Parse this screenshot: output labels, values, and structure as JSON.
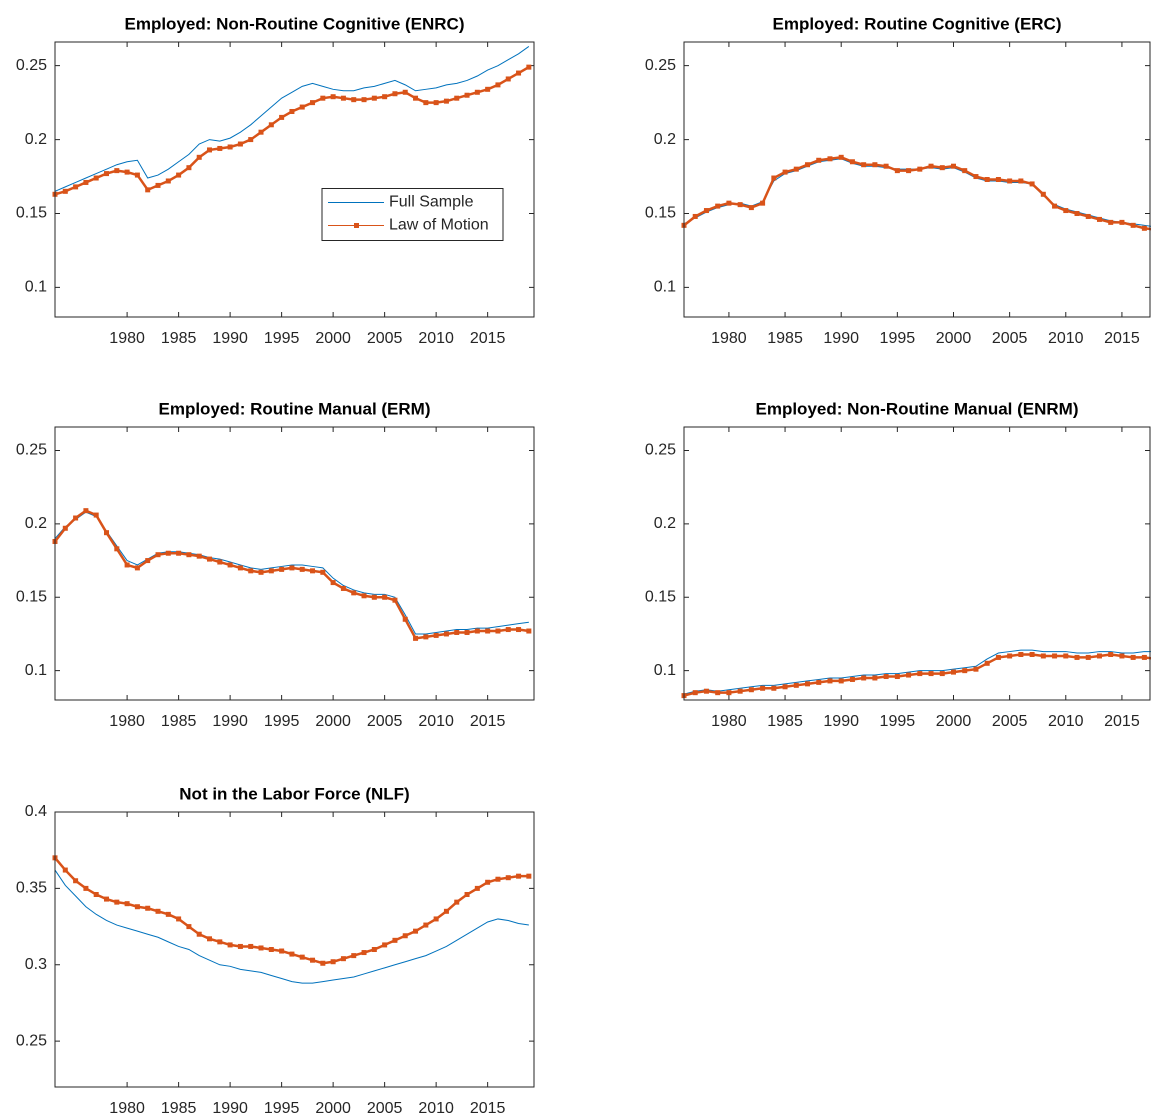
{
  "chart_data": [
    {
      "type": "line",
      "title": "Employed: Non-Routine Cognitive (ENRC)",
      "x": [
        1973,
        1974,
        1975,
        1976,
        1977,
        1978,
        1979,
        1980,
        1981,
        1982,
        1983,
        1984,
        1985,
        1986,
        1987,
        1988,
        1989,
        1990,
        1991,
        1992,
        1993,
        1994,
        1995,
        1996,
        1997,
        1998,
        1999,
        2000,
        2001,
        2002,
        2003,
        2004,
        2005,
        2006,
        2007,
        2008,
        2009,
        2010,
        2011,
        2012,
        2013,
        2014,
        2015,
        2016,
        2017,
        2018,
        2019
      ],
      "series": [
        {
          "name": "Full Sample",
          "color": "#0072bd",
          "values": [
            0.165,
            0.168,
            0.171,
            0.174,
            0.177,
            0.18,
            0.183,
            0.185,
            0.186,
            0.174,
            0.176,
            0.18,
            0.185,
            0.19,
            0.197,
            0.2,
            0.199,
            0.201,
            0.205,
            0.21,
            0.216,
            0.222,
            0.228,
            0.232,
            0.236,
            0.238,
            0.236,
            0.234,
            0.233,
            0.233,
            0.235,
            0.236,
            0.238,
            0.24,
            0.237,
            0.233,
            0.234,
            0.235,
            0.237,
            0.238,
            0.24,
            0.243,
            0.247,
            0.25,
            0.254,
            0.258,
            0.263
          ]
        },
        {
          "name": "Law of Motion",
          "color": "#d95319",
          "values": [
            0.163,
            0.165,
            0.168,
            0.171,
            0.174,
            0.177,
            0.179,
            0.178,
            0.176,
            0.166,
            0.169,
            0.172,
            0.176,
            0.181,
            0.188,
            0.193,
            0.194,
            0.195,
            0.197,
            0.2,
            0.205,
            0.21,
            0.215,
            0.219,
            0.222,
            0.225,
            0.228,
            0.229,
            0.228,
            0.227,
            0.227,
            0.228,
            0.229,
            0.231,
            0.232,
            0.228,
            0.225,
            0.225,
            0.226,
            0.228,
            0.23,
            0.232,
            0.234,
            0.237,
            0.241,
            0.245,
            0.249
          ]
        }
      ],
      "xlim": [
        1973,
        2019.5
      ],
      "xticks": [
        1980,
        1985,
        1990,
        1995,
        2000,
        2005,
        2010,
        2015
      ],
      "ylim": [
        0.08,
        0.266
      ],
      "yticks": [
        0.1,
        0.15,
        0.2,
        0.25
      ],
      "legend": "center-right"
    },
    {
      "type": "line",
      "title": "Employed: Routine Cognitive (ERC)",
      "x": [
        1976,
        1977,
        1978,
        1979,
        1980,
        1981,
        1982,
        1983,
        1984,
        1985,
        1986,
        1987,
        1988,
        1989,
        1990,
        1991,
        1992,
        1993,
        1994,
        1995,
        1996,
        1997,
        1998,
        1999,
        2000,
        2001,
        2002,
        2003,
        2004,
        2005,
        2006,
        2007,
        2008,
        2009,
        2010,
        2011,
        2012,
        2013,
        2014,
        2015,
        2016,
        2017,
        2018
      ],
      "series": [
        {
          "name": "Full Sample",
          "color": "#0072bd",
          "values": [
            0.143,
            0.147,
            0.151,
            0.154,
            0.156,
            0.157,
            0.155,
            0.158,
            0.172,
            0.177,
            0.179,
            0.182,
            0.185,
            0.186,
            0.187,
            0.184,
            0.182,
            0.182,
            0.181,
            0.18,
            0.18,
            0.18,
            0.181,
            0.18,
            0.181,
            0.178,
            0.174,
            0.172,
            0.172,
            0.171,
            0.171,
            0.17,
            0.162,
            0.156,
            0.153,
            0.151,
            0.149,
            0.147,
            0.145,
            0.144,
            0.143,
            0.142,
            0.141
          ]
        },
        {
          "name": "Law of Motion",
          "color": "#d95319",
          "values": [
            0.142,
            0.148,
            0.152,
            0.155,
            0.157,
            0.156,
            0.154,
            0.157,
            0.174,
            0.178,
            0.18,
            0.183,
            0.186,
            0.187,
            0.188,
            0.185,
            0.183,
            0.183,
            0.182,
            0.179,
            0.179,
            0.18,
            0.182,
            0.181,
            0.182,
            0.179,
            0.175,
            0.173,
            0.173,
            0.172,
            0.172,
            0.17,
            0.163,
            0.155,
            0.152,
            0.15,
            0.148,
            0.146,
            0.144,
            0.144,
            0.142,
            0.14,
            0.139
          ]
        }
      ],
      "xlim": [
        1976,
        2017.5
      ],
      "xticks": [
        1980,
        1985,
        1990,
        1995,
        2000,
        2005,
        2010,
        2015
      ],
      "ylim": [
        0.08,
        0.266
      ],
      "yticks": [
        0.1,
        0.15,
        0.2,
        0.25
      ]
    },
    {
      "type": "line",
      "title": "Employed: Routine Manual (ERM)",
      "x": [
        1973,
        1974,
        1975,
        1976,
        1977,
        1978,
        1979,
        1980,
        1981,
        1982,
        1983,
        1984,
        1985,
        1986,
        1987,
        1988,
        1989,
        1990,
        1991,
        1992,
        1993,
        1994,
        1995,
        1996,
        1997,
        1998,
        1999,
        2000,
        2001,
        2002,
        2003,
        2004,
        2005,
        2006,
        2007,
        2008,
        2009,
        2010,
        2011,
        2012,
        2013,
        2014,
        2015,
        2016,
        2017,
        2018,
        2019
      ],
      "series": [
        {
          "name": "Full Sample",
          "color": "#0072bd",
          "values": [
            0.19,
            0.198,
            0.203,
            0.208,
            0.205,
            0.195,
            0.185,
            0.175,
            0.172,
            0.176,
            0.18,
            0.181,
            0.181,
            0.18,
            0.179,
            0.177,
            0.176,
            0.174,
            0.172,
            0.17,
            0.169,
            0.17,
            0.171,
            0.172,
            0.172,
            0.171,
            0.17,
            0.163,
            0.158,
            0.155,
            0.153,
            0.152,
            0.152,
            0.15,
            0.138,
            0.125,
            0.125,
            0.126,
            0.127,
            0.128,
            0.128,
            0.129,
            0.129,
            0.13,
            0.131,
            0.132,
            0.133
          ]
        },
        {
          "name": "Law of Motion",
          "color": "#d95319",
          "values": [
            0.188,
            0.197,
            0.204,
            0.209,
            0.206,
            0.194,
            0.183,
            0.172,
            0.17,
            0.175,
            0.179,
            0.18,
            0.18,
            0.179,
            0.178,
            0.176,
            0.174,
            0.172,
            0.17,
            0.168,
            0.167,
            0.168,
            0.169,
            0.17,
            0.169,
            0.168,
            0.167,
            0.16,
            0.156,
            0.153,
            0.151,
            0.15,
            0.15,
            0.148,
            0.135,
            0.122,
            0.123,
            0.124,
            0.125,
            0.126,
            0.126,
            0.127,
            0.127,
            0.127,
            0.128,
            0.128,
            0.127
          ]
        }
      ],
      "xlim": [
        1973,
        2019.5
      ],
      "xticks": [
        1980,
        1985,
        1990,
        1995,
        2000,
        2005,
        2010,
        2015
      ],
      "ylim": [
        0.08,
        0.266
      ],
      "yticks": [
        0.1,
        0.15,
        0.2,
        0.25
      ]
    },
    {
      "type": "line",
      "title": "Employed: Non-Routine Manual (ENRM)",
      "x": [
        1976,
        1977,
        1978,
        1979,
        1980,
        1981,
        1982,
        1983,
        1984,
        1985,
        1986,
        1987,
        1988,
        1989,
        1990,
        1991,
        1992,
        1993,
        1994,
        1995,
        1996,
        1997,
        1998,
        1999,
        2000,
        2001,
        2002,
        2003,
        2004,
        2005,
        2006,
        2007,
        2008,
        2009,
        2010,
        2011,
        2012,
        2013,
        2014,
        2015,
        2016,
        2017,
        2018
      ],
      "series": [
        {
          "name": "Full Sample",
          "color": "#0072bd",
          "values": [
            0.084,
            0.086,
            0.087,
            0.086,
            0.087,
            0.088,
            0.089,
            0.09,
            0.09,
            0.091,
            0.092,
            0.093,
            0.094,
            0.095,
            0.095,
            0.096,
            0.097,
            0.097,
            0.098,
            0.098,
            0.099,
            0.1,
            0.1,
            0.1,
            0.101,
            0.102,
            0.103,
            0.108,
            0.112,
            0.113,
            0.114,
            0.114,
            0.113,
            0.113,
            0.113,
            0.112,
            0.112,
            0.113,
            0.113,
            0.112,
            0.112,
            0.113,
            0.113
          ]
        },
        {
          "name": "Law of Motion",
          "color": "#d95319",
          "values": [
            0.083,
            0.085,
            0.086,
            0.085,
            0.085,
            0.086,
            0.087,
            0.088,
            0.088,
            0.089,
            0.09,
            0.091,
            0.092,
            0.093,
            0.093,
            0.094,
            0.095,
            0.095,
            0.096,
            0.096,
            0.097,
            0.098,
            0.098,
            0.098,
            0.099,
            0.1,
            0.101,
            0.105,
            0.109,
            0.11,
            0.111,
            0.111,
            0.11,
            0.11,
            0.11,
            0.109,
            0.109,
            0.11,
            0.111,
            0.11,
            0.109,
            0.109,
            0.108
          ]
        }
      ],
      "xlim": [
        1976,
        2017.5
      ],
      "xticks": [
        1980,
        1985,
        1990,
        1995,
        2000,
        2005,
        2010,
        2015
      ],
      "ylim": [
        0.08,
        0.266
      ],
      "yticks": [
        0.1,
        0.15,
        0.2,
        0.25
      ]
    },
    {
      "type": "line",
      "title": "Not in the Labor Force (NLF)",
      "x": [
        1973,
        1974,
        1975,
        1976,
        1977,
        1978,
        1979,
        1980,
        1981,
        1982,
        1983,
        1984,
        1985,
        1986,
        1987,
        1988,
        1989,
        1990,
        1991,
        1992,
        1993,
        1994,
        1995,
        1996,
        1997,
        1998,
        1999,
        2000,
        2001,
        2002,
        2003,
        2004,
        2005,
        2006,
        2007,
        2008,
        2009,
        2010,
        2011,
        2012,
        2013,
        2014,
        2015,
        2016,
        2017,
        2018,
        2019
      ],
      "series": [
        {
          "name": "Full Sample",
          "color": "#0072bd",
          "values": [
            0.362,
            0.352,
            0.345,
            0.338,
            0.333,
            0.329,
            0.326,
            0.324,
            0.322,
            0.32,
            0.318,
            0.315,
            0.312,
            0.31,
            0.306,
            0.303,
            0.3,
            0.299,
            0.297,
            0.296,
            0.295,
            0.293,
            0.291,
            0.289,
            0.288,
            0.288,
            0.289,
            0.29,
            0.291,
            0.292,
            0.294,
            0.296,
            0.298,
            0.3,
            0.302,
            0.304,
            0.306,
            0.309,
            0.312,
            0.316,
            0.32,
            0.324,
            0.328,
            0.33,
            0.329,
            0.327,
            0.326
          ]
        },
        {
          "name": "Law of Motion",
          "color": "#d95319",
          "values": [
            0.37,
            0.362,
            0.355,
            0.35,
            0.346,
            0.343,
            0.341,
            0.34,
            0.338,
            0.337,
            0.335,
            0.333,
            0.33,
            0.325,
            0.32,
            0.317,
            0.315,
            0.313,
            0.312,
            0.312,
            0.311,
            0.31,
            0.309,
            0.307,
            0.305,
            0.303,
            0.301,
            0.302,
            0.304,
            0.306,
            0.308,
            0.31,
            0.313,
            0.316,
            0.319,
            0.322,
            0.326,
            0.33,
            0.335,
            0.341,
            0.346,
            0.35,
            0.354,
            0.356,
            0.357,
            0.358,
            0.358
          ]
        }
      ],
      "xlim": [
        1973,
        2019.5
      ],
      "xticks": [
        1980,
        1985,
        1990,
        1995,
        2000,
        2005,
        2010,
        2015
      ],
      "ylim": [
        0.22,
        0.4
      ],
      "yticks": [
        0.25,
        0.3,
        0.35,
        0.4
      ]
    }
  ]
}
